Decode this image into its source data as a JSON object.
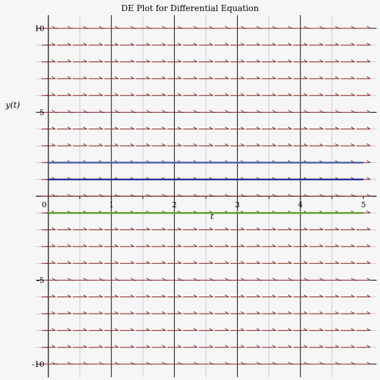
{
  "chart_data": {
    "type": "line",
    "title": "DE Plot for Differential Equation",
    "xlabel": "t",
    "ylabel": "y(t)",
    "xlim": [
      0,
      5
    ],
    "ylim": [
      -10.5,
      10
    ],
    "x_ticks": [
      "0",
      "1",
      "2",
      "3",
      "4",
      "5"
    ],
    "y_ticks": [
      "10",
      "5",
      "-5",
      "-10"
    ],
    "grid": true,
    "direction_field": {
      "t_values": [
        0,
        0.25,
        0.5,
        0.75,
        1,
        1.25,
        1.5,
        1.75,
        2,
        2.25,
        2.5,
        2.75,
        3,
        3.25,
        3.5,
        3.75,
        4,
        4.25,
        4.5,
        4.75,
        5
      ],
      "y_values": [
        10,
        9,
        8,
        7,
        6,
        5,
        4,
        3,
        2,
        1,
        0,
        -1,
        -2,
        -3,
        -4,
        -5,
        -6,
        -7,
        -8,
        -9,
        -10
      ],
      "slope": 0,
      "color": "#8b1a1a"
    },
    "series": [
      {
        "t": [
          0,
          5
        ],
        "y": [
          2,
          2
        ],
        "color": "#4b5fae"
      },
      {
        "t": [
          0,
          5
        ],
        "y": [
          1,
          1
        ],
        "color": "#2a2f9a"
      },
      {
        "t": [
          0,
          5
        ],
        "y": [
          -1,
          -1
        ],
        "color": "#5aa02c"
      }
    ]
  },
  "colors": {
    "background": "#f6f6f6",
    "grid_major": "#000000",
    "grid_minor": "#c9c9d8",
    "axis": "#000000"
  }
}
